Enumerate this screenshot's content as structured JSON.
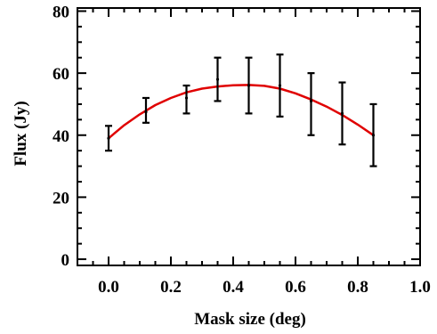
{
  "chart_data": {
    "type": "line",
    "title": "",
    "xlabel": "Mask size (deg)",
    "ylabel": "Flux (Jy)",
    "xlim": [
      -0.1,
      1.0
    ],
    "ylim": [
      -2,
      81
    ],
    "xticks": [
      0.0,
      0.2,
      0.4,
      0.6,
      0.8,
      1.0
    ],
    "xtick_labels": [
      "0.0",
      "0.2",
      "0.4",
      "0.6",
      "0.8",
      "1.0"
    ],
    "yticks": [
      0,
      20,
      40,
      60,
      80
    ],
    "ytick_labels": [
      "0",
      "20",
      "40",
      "60",
      "80"
    ],
    "grid": false,
    "points": [
      {
        "x": 0.0,
        "y": 39,
        "lower": 35,
        "upper": 43
      },
      {
        "x": 0.12,
        "y": 47.5,
        "lower": 44,
        "upper": 52
      },
      {
        "x": 0.25,
        "y": 52,
        "lower": 47,
        "upper": 56
      },
      {
        "x": 0.35,
        "y": 58,
        "lower": 51,
        "upper": 65
      },
      {
        "x": 0.45,
        "y": 56,
        "lower": 47,
        "upper": 65
      },
      {
        "x": 0.55,
        "y": 56,
        "lower": 46,
        "upper": 66
      },
      {
        "x": 0.65,
        "y": 51,
        "lower": 40,
        "upper": 60
      },
      {
        "x": 0.75,
        "y": 47,
        "lower": 37,
        "upper": 57
      },
      {
        "x": 0.85,
        "y": 40,
        "lower": 30,
        "upper": 50
      }
    ],
    "fit_curve": {
      "x": [
        0.0,
        0.05,
        0.1,
        0.15,
        0.2,
        0.25,
        0.3,
        0.35,
        0.4,
        0.45,
        0.5,
        0.55,
        0.6,
        0.65,
        0.7,
        0.75,
        0.8,
        0.85
      ],
      "y": [
        39,
        43.2,
        46.7,
        49.7,
        52.0,
        53.8,
        55.0,
        55.7,
        56.1,
        56.2,
        55.9,
        55.0,
        53.5,
        51.5,
        49.2,
        46.5,
        43.4,
        40.0
      ],
      "color": "#e00000"
    },
    "errorbar_color": "#000000"
  }
}
